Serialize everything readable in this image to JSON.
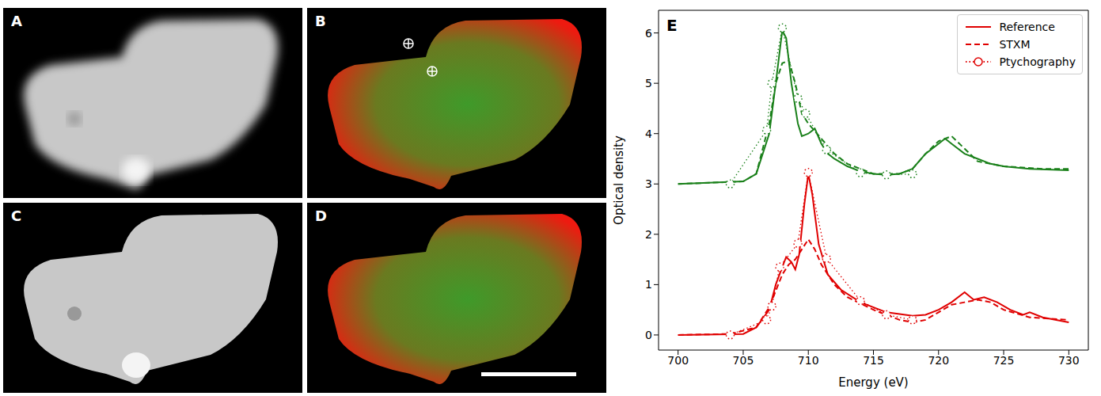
{
  "image_panels": [
    "A",
    "B",
    "C",
    "D"
  ],
  "chart_data": {
    "type": "line",
    "panel_label": "E",
    "x_label": "Energy (eV)",
    "y_label": "Optical density",
    "xlim": [
      698.5,
      731.5
    ],
    "xticks": [
      700,
      705,
      710,
      715,
      720,
      725,
      730
    ],
    "ylim": [
      -0.3,
      6.45
    ],
    "yticks": [
      0,
      1,
      2,
      3,
      4,
      5,
      6
    ],
    "grid": false,
    "legend": "upper right",
    "series": [
      {
        "name": "Reference",
        "color": "#e00000",
        "line_style": "solid",
        "marker": "none",
        "x": [
          700,
          705,
          706,
          707,
          707.5,
          708,
          708.3,
          708.7,
          709,
          709.3,
          709.7,
          710,
          710.3,
          710.8,
          711.5,
          712.5,
          714,
          716,
          718,
          719,
          720,
          721,
          722,
          722.7,
          723.5,
          724.5,
          725.5,
          726.5,
          727,
          728,
          730
        ],
        "values": [
          0,
          0.02,
          0.15,
          0.5,
          1.0,
          1.35,
          1.55,
          1.45,
          1.3,
          1.6,
          2.6,
          3.2,
          2.8,
          1.8,
          1.2,
          0.9,
          0.65,
          0.45,
          0.38,
          0.4,
          0.5,
          0.65,
          0.85,
          0.7,
          0.75,
          0.65,
          0.5,
          0.4,
          0.45,
          0.35,
          0.25
        ]
      },
      {
        "name": "STXM",
        "color": "#e00000",
        "line_style": "dashed",
        "marker": "none",
        "x": [
          700,
          704,
          706,
          707,
          708,
          708.5,
          709,
          709.5,
          710,
          710.5,
          711,
          712,
          713,
          715,
          717,
          718,
          719,
          720,
          721,
          722,
          723,
          724,
          725,
          727,
          730
        ],
        "values": [
          0,
          0.02,
          0.15,
          0.55,
          1.2,
          1.4,
          1.5,
          1.7,
          1.9,
          1.7,
          1.4,
          1.0,
          0.75,
          0.5,
          0.3,
          0.25,
          0.3,
          0.45,
          0.6,
          0.65,
          0.7,
          0.65,
          0.5,
          0.35,
          0.3
        ]
      },
      {
        "name": "Ptychography",
        "color": "#e00000",
        "line_style": "dotted",
        "marker": "circle",
        "x": [
          704,
          706.8,
          707.2,
          707.8,
          709.2,
          710,
          711.4,
          714,
          716,
          718
        ],
        "values": [
          0,
          0.3,
          0.57,
          1.35,
          1.82,
          3.23,
          1.52,
          0.68,
          0.4,
          0.3
        ]
      },
      {
        "name": "Reference",
        "color": "#1a801a",
        "line_style": "solid",
        "marker": "none",
        "x": [
          700,
          705,
          706,
          707,
          707.5,
          708,
          708.3,
          708.7,
          709.2,
          709.5,
          710,
          710.5,
          711,
          711.5,
          712,
          713,
          714,
          715,
          716,
          717,
          718,
          719,
          720,
          720.5,
          721,
          722,
          723,
          724,
          725,
          727,
          730
        ],
        "values": [
          3.0,
          3.05,
          3.2,
          4.0,
          5.0,
          6.05,
          5.9,
          5.0,
          4.2,
          3.95,
          4.0,
          4.1,
          3.8,
          3.6,
          3.5,
          3.35,
          3.25,
          3.2,
          3.18,
          3.2,
          3.3,
          3.6,
          3.8,
          3.9,
          3.8,
          3.6,
          3.5,
          3.4,
          3.35,
          3.3,
          3.27
        ]
      },
      {
        "name": "STXM",
        "color": "#1a801a",
        "line_style": "dashed",
        "marker": "none",
        "x": [
          700,
          705,
          706,
          707,
          707.5,
          708,
          708.5,
          709,
          709.5,
          710,
          711,
          712,
          713,
          715,
          717,
          718,
          719,
          720,
          721,
          722,
          723,
          725,
          728,
          730
        ],
        "values": [
          3.0,
          3.05,
          3.2,
          4.2,
          5.0,
          5.4,
          5.45,
          5.0,
          4.4,
          4.2,
          3.9,
          3.6,
          3.4,
          3.2,
          3.2,
          3.3,
          3.6,
          3.85,
          3.95,
          3.7,
          3.45,
          3.35,
          3.3,
          3.3
        ]
      },
      {
        "name": "Ptychography",
        "color": "#1a801a",
        "line_style": "dotted",
        "marker": "circle",
        "x": [
          704,
          706.8,
          707.2,
          708,
          709.2,
          709.8,
          711.4,
          714,
          716,
          718
        ],
        "values": [
          3.0,
          4.07,
          5.0,
          6.1,
          4.7,
          4.4,
          3.68,
          3.22,
          3.18,
          3.2
        ]
      }
    ]
  }
}
